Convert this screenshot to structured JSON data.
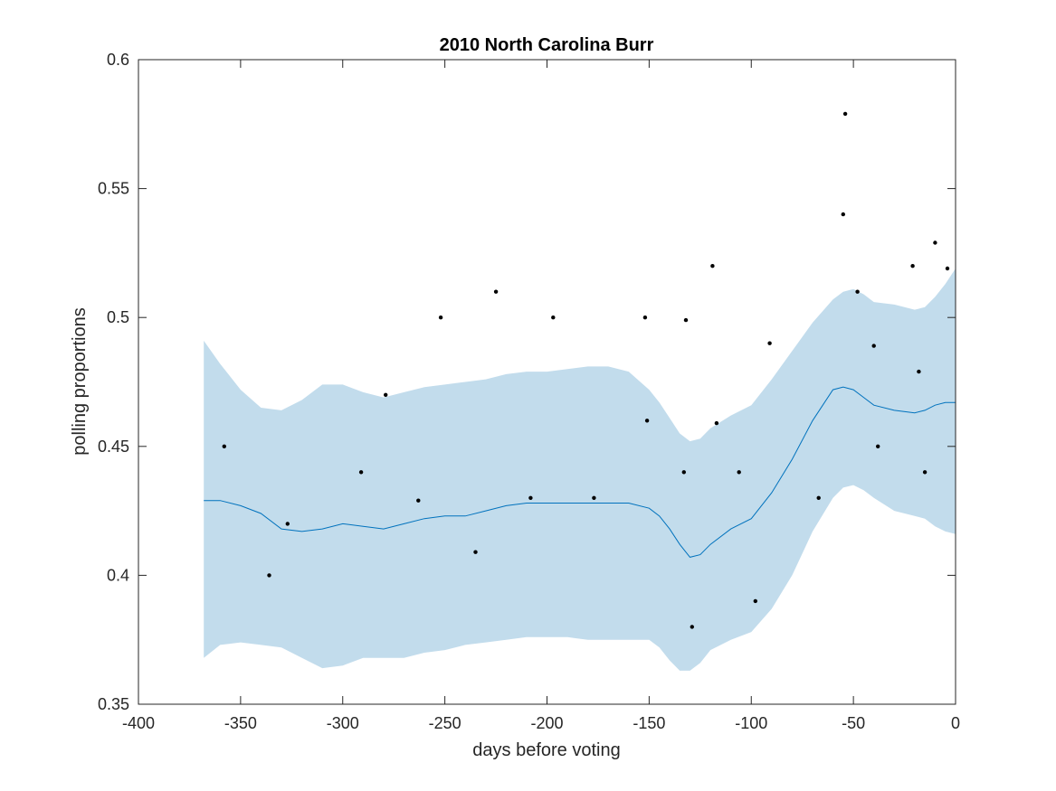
{
  "chart_data": {
    "type": "scatter",
    "title": "2010 North Carolina Burr",
    "xlabel": "days before voting",
    "ylabel": "polling proportions",
    "xlim": [
      -400,
      0
    ],
    "ylim": [
      0.35,
      0.6
    ],
    "xticks": [
      -400,
      -350,
      -300,
      -250,
      -200,
      -150,
      -100,
      -50,
      0
    ],
    "yticks": [
      0.35,
      0.4,
      0.45,
      0.5,
      0.55,
      0.6
    ],
    "xtick_labels": [
      "-400",
      "-350",
      "-300",
      "-250",
      "-200",
      "-150",
      "-100",
      "-50",
      "0"
    ],
    "ytick_labels": [
      "0.35",
      "0.4",
      "0.45",
      "0.5",
      "0.55",
      "0.6"
    ],
    "grid": false,
    "colors": {
      "band": "#c2dcec",
      "line": "#0072bd",
      "points": "#000000",
      "axes": "#262626"
    },
    "points": {
      "x": [
        -358,
        -336,
        -327,
        -291,
        -279,
        -263,
        -252,
        -235,
        -225,
        -208,
        -197,
        -177,
        -152,
        -151,
        -133,
        -132,
        -129,
        -119,
        -117,
        -106,
        -98,
        -91,
        -67,
        -55,
        -54,
        -48,
        -40,
        -38,
        -21,
        -18,
        -15,
        -10,
        -4
      ],
      "y": [
        0.45,
        0.4,
        0.42,
        0.44,
        0.47,
        0.429,
        0.5,
        0.409,
        0.51,
        0.43,
        0.5,
        0.43,
        0.5,
        0.46,
        0.44,
        0.499,
        0.38,
        0.52,
        0.459,
        0.44,
        0.39,
        0.49,
        0.43,
        0.54,
        0.579,
        0.51,
        0.489,
        0.45,
        0.52,
        0.479,
        0.44,
        0.529,
        0.519
      ]
    },
    "fit": {
      "x": [
        -368,
        -360,
        -350,
        -340,
        -330,
        -320,
        -310,
        -300,
        -290,
        -280,
        -270,
        -260,
        -250,
        -240,
        -230,
        -220,
        -210,
        -200,
        -190,
        -180,
        -170,
        -160,
        -150,
        -145,
        -140,
        -135,
        -130,
        -125,
        -120,
        -110,
        -100,
        -90,
        -80,
        -70,
        -60,
        -55,
        -50,
        -45,
        -40,
        -30,
        -20,
        -15,
        -10,
        -5,
        0
      ],
      "mean": [
        0.429,
        0.429,
        0.427,
        0.424,
        0.418,
        0.417,
        0.418,
        0.42,
        0.419,
        0.418,
        0.42,
        0.422,
        0.423,
        0.423,
        0.425,
        0.427,
        0.428,
        0.428,
        0.428,
        0.428,
        0.428,
        0.428,
        0.426,
        0.423,
        0.418,
        0.412,
        0.407,
        0.408,
        0.412,
        0.418,
        0.422,
        0.432,
        0.445,
        0.46,
        0.472,
        0.473,
        0.472,
        0.469,
        0.466,
        0.464,
        0.463,
        0.464,
        0.466,
        0.467,
        0.467
      ],
      "upper": [
        0.491,
        0.482,
        0.472,
        0.465,
        0.464,
        0.468,
        0.474,
        0.474,
        0.471,
        0.469,
        0.471,
        0.473,
        0.474,
        0.475,
        0.476,
        0.478,
        0.479,
        0.479,
        0.48,
        0.481,
        0.481,
        0.479,
        0.472,
        0.467,
        0.461,
        0.455,
        0.452,
        0.453,
        0.457,
        0.462,
        0.466,
        0.476,
        0.487,
        0.498,
        0.507,
        0.51,
        0.511,
        0.509,
        0.506,
        0.505,
        0.503,
        0.504,
        0.508,
        0.513,
        0.519
      ],
      "lower": [
        0.368,
        0.373,
        0.374,
        0.373,
        0.372,
        0.368,
        0.364,
        0.365,
        0.368,
        0.368,
        0.368,
        0.37,
        0.371,
        0.373,
        0.374,
        0.375,
        0.376,
        0.376,
        0.376,
        0.375,
        0.375,
        0.375,
        0.375,
        0.372,
        0.367,
        0.363,
        0.363,
        0.366,
        0.371,
        0.375,
        0.378,
        0.387,
        0.4,
        0.417,
        0.43,
        0.434,
        0.435,
        0.433,
        0.43,
        0.425,
        0.423,
        0.422,
        0.419,
        0.417,
        0.416
      ]
    }
  }
}
